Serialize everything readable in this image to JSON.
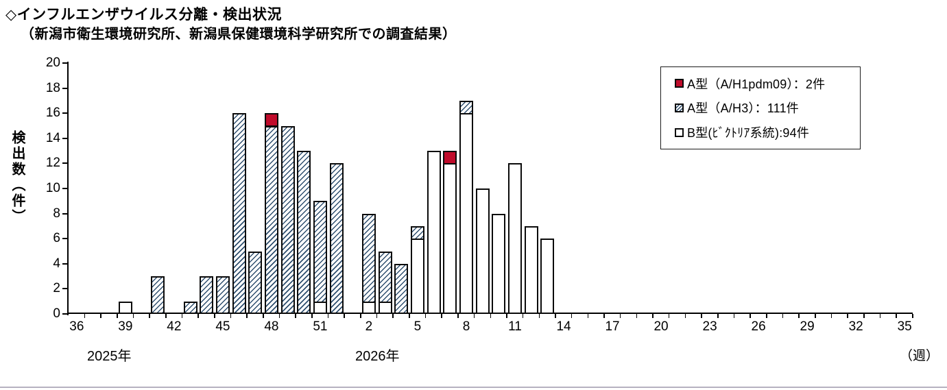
{
  "header": {
    "title": "◇インフルエンザウイルス分離・検出状況",
    "subtitle": "（新潟市衛生環境研究所、新潟県保健環境科学研究所での調査結果）"
  },
  "chart_data": {
    "type": "bar",
    "stacked": true,
    "title": "◇インフルエンザウイルス分離・検出状況",
    "subtitle": "（新潟市衛生環境研究所、新潟県保健環境科学研究所での調査結果）",
    "ylabel": "検出数（件）",
    "week_unit_label": "（週）",
    "ylim": [
      0,
      20
    ],
    "ytick_step": 2,
    "grid": false,
    "legend_position": "top-right",
    "x_axis": {
      "start": {
        "year": 2025,
        "week": 36
      },
      "end": {
        "year": 2026,
        "week": 35
      },
      "total_weeks": 52,
      "tick_every_weeks": 3,
      "tick_labels": [
        "36",
        "39",
        "42",
        "45",
        "48",
        "51",
        "2",
        "5",
        "8",
        "11",
        "14",
        "17",
        "20",
        "23",
        "26",
        "29",
        "32",
        "35"
      ],
      "year_labels": [
        {
          "text": "2025年"
        },
        {
          "text": "2026年"
        }
      ]
    },
    "series": [
      {
        "key": "PDM",
        "name": "A型（A/H1pdm09）",
        "legend_label": "A型（A/H1pdm09）：2件",
        "total_count": 2,
        "style": "solid-red",
        "color": "#c00c2b"
      },
      {
        "key": "AH3",
        "name": "A型（A/H3）",
        "legend_label": "A型（A/H3）：111件",
        "total_count": 111,
        "style": "hatched",
        "color": "#2e4e6e"
      },
      {
        "key": "B",
        "name": "B型(ﾋﾞｸﾄﾘｱ系統)",
        "legend_label": "B型(ﾋﾞｸﾄﾘｱ系統):94件",
        "total_count": 94,
        "style": "white",
        "color": "#ffffff"
      }
    ],
    "stack_order_bottom_to_top": [
      "B",
      "AH3",
      "PDM"
    ],
    "points": [
      {
        "year": 2025,
        "week": 39,
        "B": 1
      },
      {
        "year": 2025,
        "week": 41,
        "AH3": 3
      },
      {
        "year": 2025,
        "week": 43,
        "AH3": 1
      },
      {
        "year": 2025,
        "week": 44,
        "AH3": 3
      },
      {
        "year": 2025,
        "week": 45,
        "AH3": 3
      },
      {
        "year": 2025,
        "week": 46,
        "AH3": 16
      },
      {
        "year": 2025,
        "week": 47,
        "AH3": 5
      },
      {
        "year": 2025,
        "week": 48,
        "AH3": 15,
        "PDM": 1
      },
      {
        "year": 2025,
        "week": 49,
        "AH3": 15
      },
      {
        "year": 2025,
        "week": 50,
        "AH3": 13
      },
      {
        "year": 2025,
        "week": 51,
        "B": 1,
        "AH3": 8
      },
      {
        "year": 2025,
        "week": 52,
        "AH3": 12
      },
      {
        "year": 2026,
        "week": 2,
        "B": 1,
        "AH3": 7
      },
      {
        "year": 2026,
        "week": 3,
        "B": 1,
        "AH3": 4
      },
      {
        "year": 2026,
        "week": 4,
        "AH3": 4
      },
      {
        "year": 2026,
        "week": 5,
        "B": 6,
        "AH3": 1
      },
      {
        "year": 2026,
        "week": 6,
        "B": 13
      },
      {
        "year": 2026,
        "week": 7,
        "B": 12,
        "PDM": 1
      },
      {
        "year": 2026,
        "week": 8,
        "B": 16,
        "AH3": 1
      },
      {
        "year": 2026,
        "week": 9,
        "B": 10
      },
      {
        "year": 2026,
        "week": 10,
        "B": 8
      },
      {
        "year": 2026,
        "week": 11,
        "B": 12
      },
      {
        "year": 2026,
        "week": 12,
        "B": 7
      },
      {
        "year": 2026,
        "week": 13,
        "B": 6
      }
    ]
  }
}
